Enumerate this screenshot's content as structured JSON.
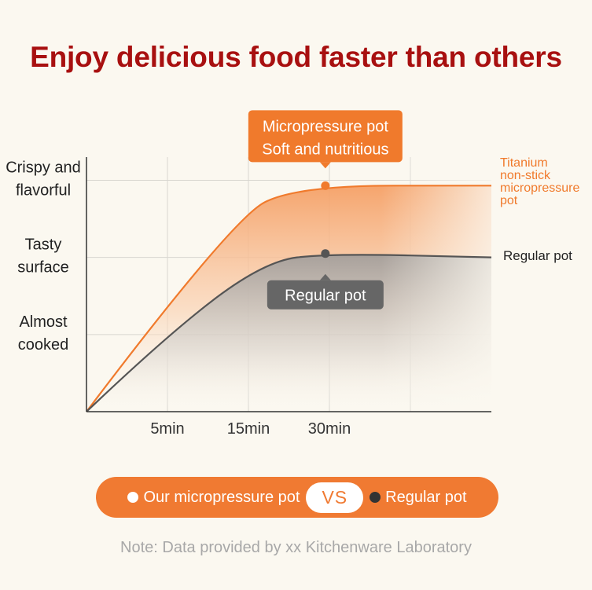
{
  "title": "Enjoy delicious food faster than others",
  "legend": {
    "our_label": "Our micropressure pot",
    "vs_label": "VS",
    "regular_label": "Regular pot",
    "our_dot_color": "#ffffff",
    "regular_dot_color": "#333333"
  },
  "note": "Note: Data provided by xx Kitchenware Laboratory",
  "colors": {
    "title": "#a81010",
    "orange": "#f07a2c",
    "gray": "#555555",
    "background": "#fbf8f0"
  },
  "chart_data": {
    "type": "line",
    "title": "Enjoy delicious food faster than others",
    "x_ticks": [
      "5min",
      "15min",
      "30min"
    ],
    "y_levels": [
      "Almost cooked",
      "Tasty surface",
      "Crispy and flavorful"
    ],
    "xlim": [
      0,
      5
    ],
    "ylim": [
      0,
      3.3
    ],
    "series": [
      {
        "name": "Titanium non-stick micropressure pot",
        "label": "Titanium non-stick micropressure pot",
        "color": "#f07a2c",
        "points": [
          [
            0,
            0
          ],
          [
            1.8,
            2.5
          ],
          [
            2.6,
            2.93
          ],
          [
            5,
            2.93
          ]
        ],
        "peak": [
          2.95,
          2.93
        ]
      },
      {
        "name": "Regular pot",
        "label": "Regular pot",
        "color": "#555555",
        "points": [
          [
            0,
            0
          ],
          [
            1.0,
            1.0
          ],
          [
            2.2,
            1.95
          ],
          [
            3.0,
            2.05
          ],
          [
            5,
            2.0
          ]
        ],
        "peak": [
          2.95,
          2.05
        ]
      }
    ],
    "callouts": [
      {
        "series": "Titanium non-stick micropressure pot",
        "lines": [
          "Micropressure pot",
          "Soft and nutritious"
        ],
        "color": "#f07a2c"
      },
      {
        "series": "Regular pot",
        "lines": [
          "Regular pot"
        ],
        "color": "#666666"
      }
    ]
  }
}
